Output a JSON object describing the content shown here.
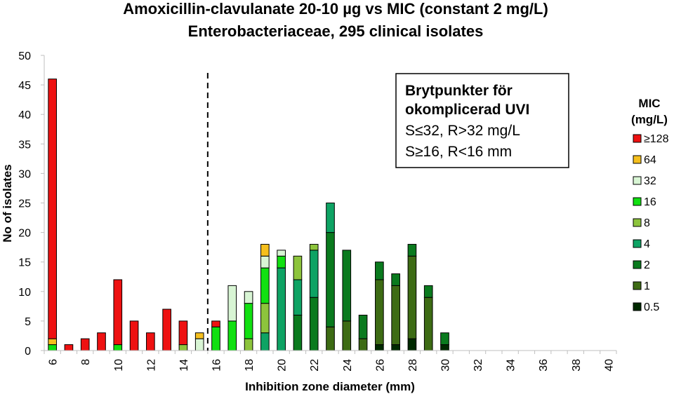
{
  "chart_data": {
    "type": "bar",
    "stacked": true,
    "title": "Amoxicillin-clavulanate 20-10 µg vs MIC (constant 2 mg/L)",
    "subtitle": "Enterobacteriaceae, 295 clinical isolates",
    "xlabel": "Inhibition zone diameter (mm)",
    "ylabel": "No of isolates",
    "ylim": [
      0,
      50
    ],
    "yticks": [
      "0",
      "5",
      "10",
      "15",
      "20",
      "25",
      "30",
      "35",
      "40",
      "45",
      "50"
    ],
    "xlim": [
      6,
      40
    ],
    "xticks": [
      "6",
      "8",
      "10",
      "12",
      "14",
      "16",
      "18",
      "20",
      "22",
      "24",
      "26",
      "28",
      "30",
      "32",
      "34",
      "36",
      "38",
      "40"
    ],
    "x": [
      6,
      7,
      8,
      9,
      10,
      11,
      12,
      13,
      14,
      15,
      16,
      17,
      18,
      19,
      20,
      21,
      22,
      23,
      24,
      25,
      26,
      27,
      28,
      29,
      30,
      31,
      32,
      33,
      34,
      35,
      36,
      37,
      38,
      39,
      40
    ],
    "breakpoint_line_x": 15.5,
    "annotation": {
      "line1": "Brytpunkter för",
      "line2": "okomplicerad UVI",
      "line3": "S≤32, R>32 mg/L",
      "line4": "S≥16, R<16 mm"
    },
    "legend": {
      "title_line1": "MIC",
      "title_line2": "(mg/L)",
      "position": "right"
    },
    "series": [
      {
        "name": "0.5",
        "color": "#002a00",
        "values": [
          0,
          0,
          0,
          0,
          0,
          0,
          0,
          0,
          0,
          0,
          0,
          0,
          0,
          0,
          0,
          0,
          0,
          0,
          0,
          0,
          1,
          1,
          2,
          0,
          1,
          0,
          0,
          0,
          0,
          0,
          0,
          0,
          0,
          0,
          0
        ]
      },
      {
        "name": "1",
        "color": "#3d6b14",
        "values": [
          0,
          0,
          0,
          0,
          0,
          0,
          0,
          0,
          0,
          0,
          0,
          0,
          0,
          0,
          0,
          0,
          0,
          4,
          5,
          2,
          11,
          10,
          14,
          9,
          0,
          0,
          0,
          0,
          0,
          0,
          0,
          0,
          0,
          0,
          0
        ]
      },
      {
        "name": "2",
        "color": "#0a7a1e",
        "values": [
          0,
          0,
          0,
          0,
          0,
          0,
          0,
          0,
          0,
          0,
          0,
          0,
          0,
          0,
          0,
          6,
          9,
          16,
          12,
          4,
          3,
          2,
          2,
          2,
          2,
          0,
          0,
          0,
          0,
          0,
          0,
          0,
          0,
          0,
          0
        ]
      },
      {
        "name": "4",
        "color": "#0ea364",
        "values": [
          0,
          0,
          0,
          0,
          0,
          0,
          0,
          0,
          0,
          0,
          0,
          0,
          0,
          3,
          14,
          6,
          8,
          5,
          0,
          0,
          0,
          0,
          0,
          0,
          0,
          0,
          0,
          0,
          0,
          0,
          0,
          0,
          0,
          0,
          0
        ]
      },
      {
        "name": "8",
        "color": "#8dc43c",
        "values": [
          0,
          0,
          0,
          0,
          0,
          0,
          0,
          0,
          1,
          0,
          0,
          0,
          2,
          5,
          0,
          4,
          1,
          0,
          0,
          0,
          0,
          0,
          0,
          0,
          0,
          0,
          0,
          0,
          0,
          0,
          0,
          0,
          0,
          0,
          0
        ]
      },
      {
        "name": "16",
        "color": "#11e011",
        "values": [
          1,
          0,
          0,
          0,
          1,
          0,
          0,
          0,
          0,
          0,
          4,
          5,
          6,
          6,
          2,
          0,
          0,
          0,
          0,
          0,
          0,
          0,
          0,
          0,
          0,
          0,
          0,
          0,
          0,
          0,
          0,
          0,
          0,
          0,
          0
        ]
      },
      {
        "name": "32",
        "color": "#d8f5d4",
        "values": [
          0,
          0,
          0,
          0,
          0,
          0,
          0,
          0,
          0,
          2,
          0,
          6,
          2,
          2,
          1,
          0,
          0,
          0,
          0,
          0,
          0,
          0,
          0,
          0,
          0,
          0,
          0,
          0,
          0,
          0,
          0,
          0,
          0,
          0,
          0
        ]
      },
      {
        "name": "64",
        "color": "#f5bf1d",
        "values": [
          1,
          0,
          0,
          0,
          0,
          0,
          0,
          0,
          0,
          1,
          0,
          0,
          0,
          2,
          0,
          0,
          0,
          0,
          0,
          0,
          0,
          0,
          0,
          0,
          0,
          0,
          0,
          0,
          0,
          0,
          0,
          0,
          0,
          0,
          0
        ]
      },
      {
        "name": "≥128",
        "color": "#ee1111",
        "values": [
          44,
          1,
          2,
          3,
          11,
          5,
          3,
          7,
          4,
          0,
          1,
          0,
          0,
          0,
          0,
          0,
          0,
          0,
          0,
          0,
          0,
          0,
          0,
          0,
          0,
          0,
          0,
          0,
          0,
          0,
          0,
          0,
          0,
          0,
          0
        ]
      }
    ]
  }
}
